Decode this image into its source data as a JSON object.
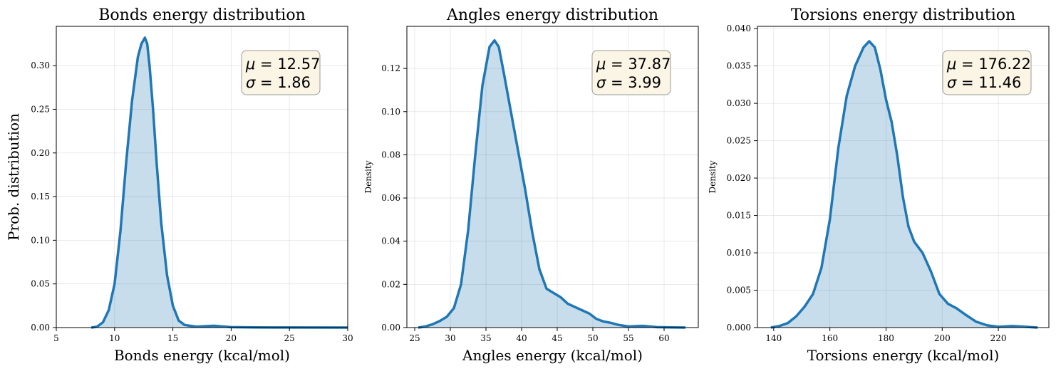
{
  "chart_data": [
    {
      "type": "area",
      "title": "Bonds energy distribution",
      "xlabel": "Bonds energy (kcal/mol)",
      "ylabel": "Prob. distribution",
      "xlim": [
        5,
        30
      ],
      "ylim": [
        0,
        0.345
      ],
      "xticks": [
        5,
        10,
        15,
        20,
        25,
        30
      ],
      "yticks": [
        0.0,
        0.05,
        0.1,
        0.15,
        0.2,
        0.25,
        0.3
      ],
      "ytick_decimals": 2,
      "grid": true,
      "stats": {
        "mu": "12.57",
        "sigma": "1.86"
      },
      "series": [
        {
          "x": [
            8.0,
            8.5,
            9.0,
            9.5,
            10.0,
            10.5,
            11.0,
            11.5,
            12.0,
            12.3,
            12.6,
            12.8,
            13.0,
            13.3,
            13.6,
            14.0,
            14.5,
            15.0,
            15.5,
            16.0,
            17.0,
            18.5,
            20.0,
            22.0,
            25.0,
            30.0
          ],
          "y": [
            0.0,
            0.001,
            0.006,
            0.02,
            0.05,
            0.11,
            0.19,
            0.26,
            0.31,
            0.325,
            0.332,
            0.325,
            0.3,
            0.25,
            0.19,
            0.12,
            0.06,
            0.025,
            0.008,
            0.003,
            0.001,
            0.002,
            0.0005,
            0.0002,
            0.0001,
            0.0
          ]
        }
      ]
    },
    {
      "type": "area",
      "title": "Angles energy distribution",
      "xlabel": "Angles energy (kcal/mol)",
      "ylabel": "Density",
      "xlim": [
        23.9,
        64.8
      ],
      "ylim": [
        0,
        0.1395
      ],
      "xticks": [
        25,
        30,
        35,
        40,
        45,
        50,
        55,
        60
      ],
      "yticks": [
        0.0,
        0.02,
        0.04,
        0.06,
        0.08,
        0.1,
        0.12
      ],
      "ytick_decimals": 2,
      "grid": true,
      "stats": {
        "mu": "37.87",
        "sigma": "3.99"
      },
      "series": [
        {
          "x": [
            25.5,
            26.5,
            27.5,
            28.5,
            29.5,
            30.5,
            31.5,
            32.5,
            33.5,
            34.5,
            35.5,
            36.2,
            36.8,
            37.5,
            38.5,
            39.5,
            40.5,
            41.5,
            42.5,
            43.5,
            44.5,
            45.5,
            46.5,
            47.5,
            48.5,
            49.5,
            50.5,
            51.5,
            52.5,
            53.5,
            55.0,
            57.0,
            59.0,
            61.0,
            63.0
          ],
          "y": [
            0.0,
            0.0005,
            0.0015,
            0.003,
            0.005,
            0.009,
            0.02,
            0.045,
            0.08,
            0.112,
            0.13,
            0.133,
            0.13,
            0.118,
            0.1,
            0.082,
            0.064,
            0.044,
            0.027,
            0.018,
            0.016,
            0.014,
            0.011,
            0.0095,
            0.008,
            0.0065,
            0.004,
            0.0028,
            0.0022,
            0.0013,
            0.0005,
            0.0008,
            0.0002,
            0.0001,
            0.0
          ]
        }
      ]
    },
    {
      "type": "area",
      "title": "Torsions energy distribution",
      "xlabel": "Torsions energy (kcal/mol)",
      "ylabel": "Density",
      "xlim": [
        134.2,
        238.0
      ],
      "ylim": [
        0,
        0.0403
      ],
      "xticks": [
        140,
        160,
        180,
        200,
        220
      ],
      "yticks": [
        0.0,
        0.005,
        0.01,
        0.015,
        0.02,
        0.025,
        0.03,
        0.035,
        0.04
      ],
      "ytick_decimals": 3,
      "grid": true,
      "stats": {
        "mu": "176.22",
        "sigma": "11.46"
      },
      "series": [
        {
          "x": [
            139,
            142,
            145,
            148,
            151,
            154,
            157,
            160,
            163,
            166,
            169,
            172,
            174,
            176,
            178,
            180,
            182,
            184,
            186,
            188,
            190,
            193,
            196,
            199,
            202,
            205,
            208,
            212,
            216,
            220,
            225,
            230,
            234
          ],
          "y": [
            0.0,
            0.0002,
            0.0006,
            0.0015,
            0.0028,
            0.0045,
            0.008,
            0.0145,
            0.024,
            0.031,
            0.035,
            0.0375,
            0.0383,
            0.0375,
            0.0345,
            0.0305,
            0.0275,
            0.023,
            0.0175,
            0.0135,
            0.0115,
            0.01,
            0.0075,
            0.0045,
            0.0032,
            0.0026,
            0.0018,
            0.0008,
            0.0003,
            0.0001,
            0.0002,
            0.0001,
            0.0
          ]
        }
      ]
    }
  ]
}
